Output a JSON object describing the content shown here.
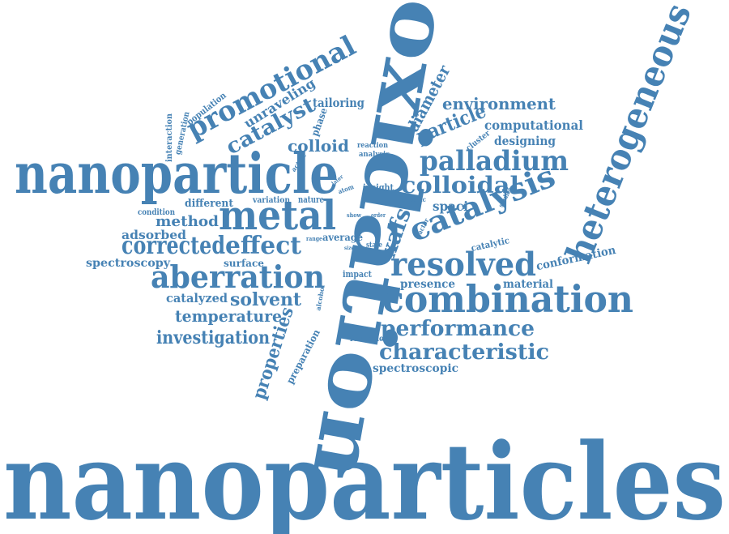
{
  "color": "#4682b4",
  "words": {
    "nanoparticles": "nanoparticles",
    "oxidation": "oxidation",
    "nanoparticle": "nanoparticle",
    "heterogeneous": "heterogeneous",
    "metal": "metal",
    "combination": "combination",
    "catalysis": "catalysis",
    "aberration": "aberration",
    "resolved": "resolved",
    "palladium": "palladium",
    "promotional": "promotional",
    "corrected": "corrected",
    "effect": "effect",
    "characteristic": "characteristic",
    "performance": "performance",
    "colloidal": "colloidal",
    "catalyst": "catalyst",
    "investigation": "investigation",
    "environment": "environment",
    "particle": "particle",
    "properties": "properties",
    "temperature": "temperature",
    "solvent": "solvent",
    "xafs": "xafs",
    "colloid": "colloid",
    "method": "method",
    "diameter": "diameter",
    "computational": "computational",
    "unraveling": "unraveling",
    "spectroscopy": "spectroscopy",
    "spectroscopic": "spectroscopic",
    "conformation": "conformation",
    "designing": "designing",
    "adsorbed": "adsorbed",
    "catalyzed": "catalyzed",
    "tailoring": "tailoring",
    "presence": "presence",
    "material": "material",
    "spaci": "spaci",
    "different": "different",
    "average": "average",
    "surface": "surface",
    "phase": "phase",
    "preparation": "preparation",
    "catalytic": "catalytic",
    "impact": "impact",
    "population": "population",
    "insight": "insight",
    "formation": "formation",
    "variation": "variation",
    "nature": "nature",
    "interaction": "interaction",
    "generation": "generation",
    "condition": "condition",
    "cluster": "cluster",
    "reaction": "reaction",
    "analysis": "analysis",
    "active": "active",
    "specific": "specific",
    "studies": "studies",
    "factor": "factor",
    "state": "state",
    "alcohol": "alcohol",
    "atom": "atom",
    "later": "later",
    "show": "show",
    "order": "order",
    "range": "range",
    "size": "size"
  }
}
